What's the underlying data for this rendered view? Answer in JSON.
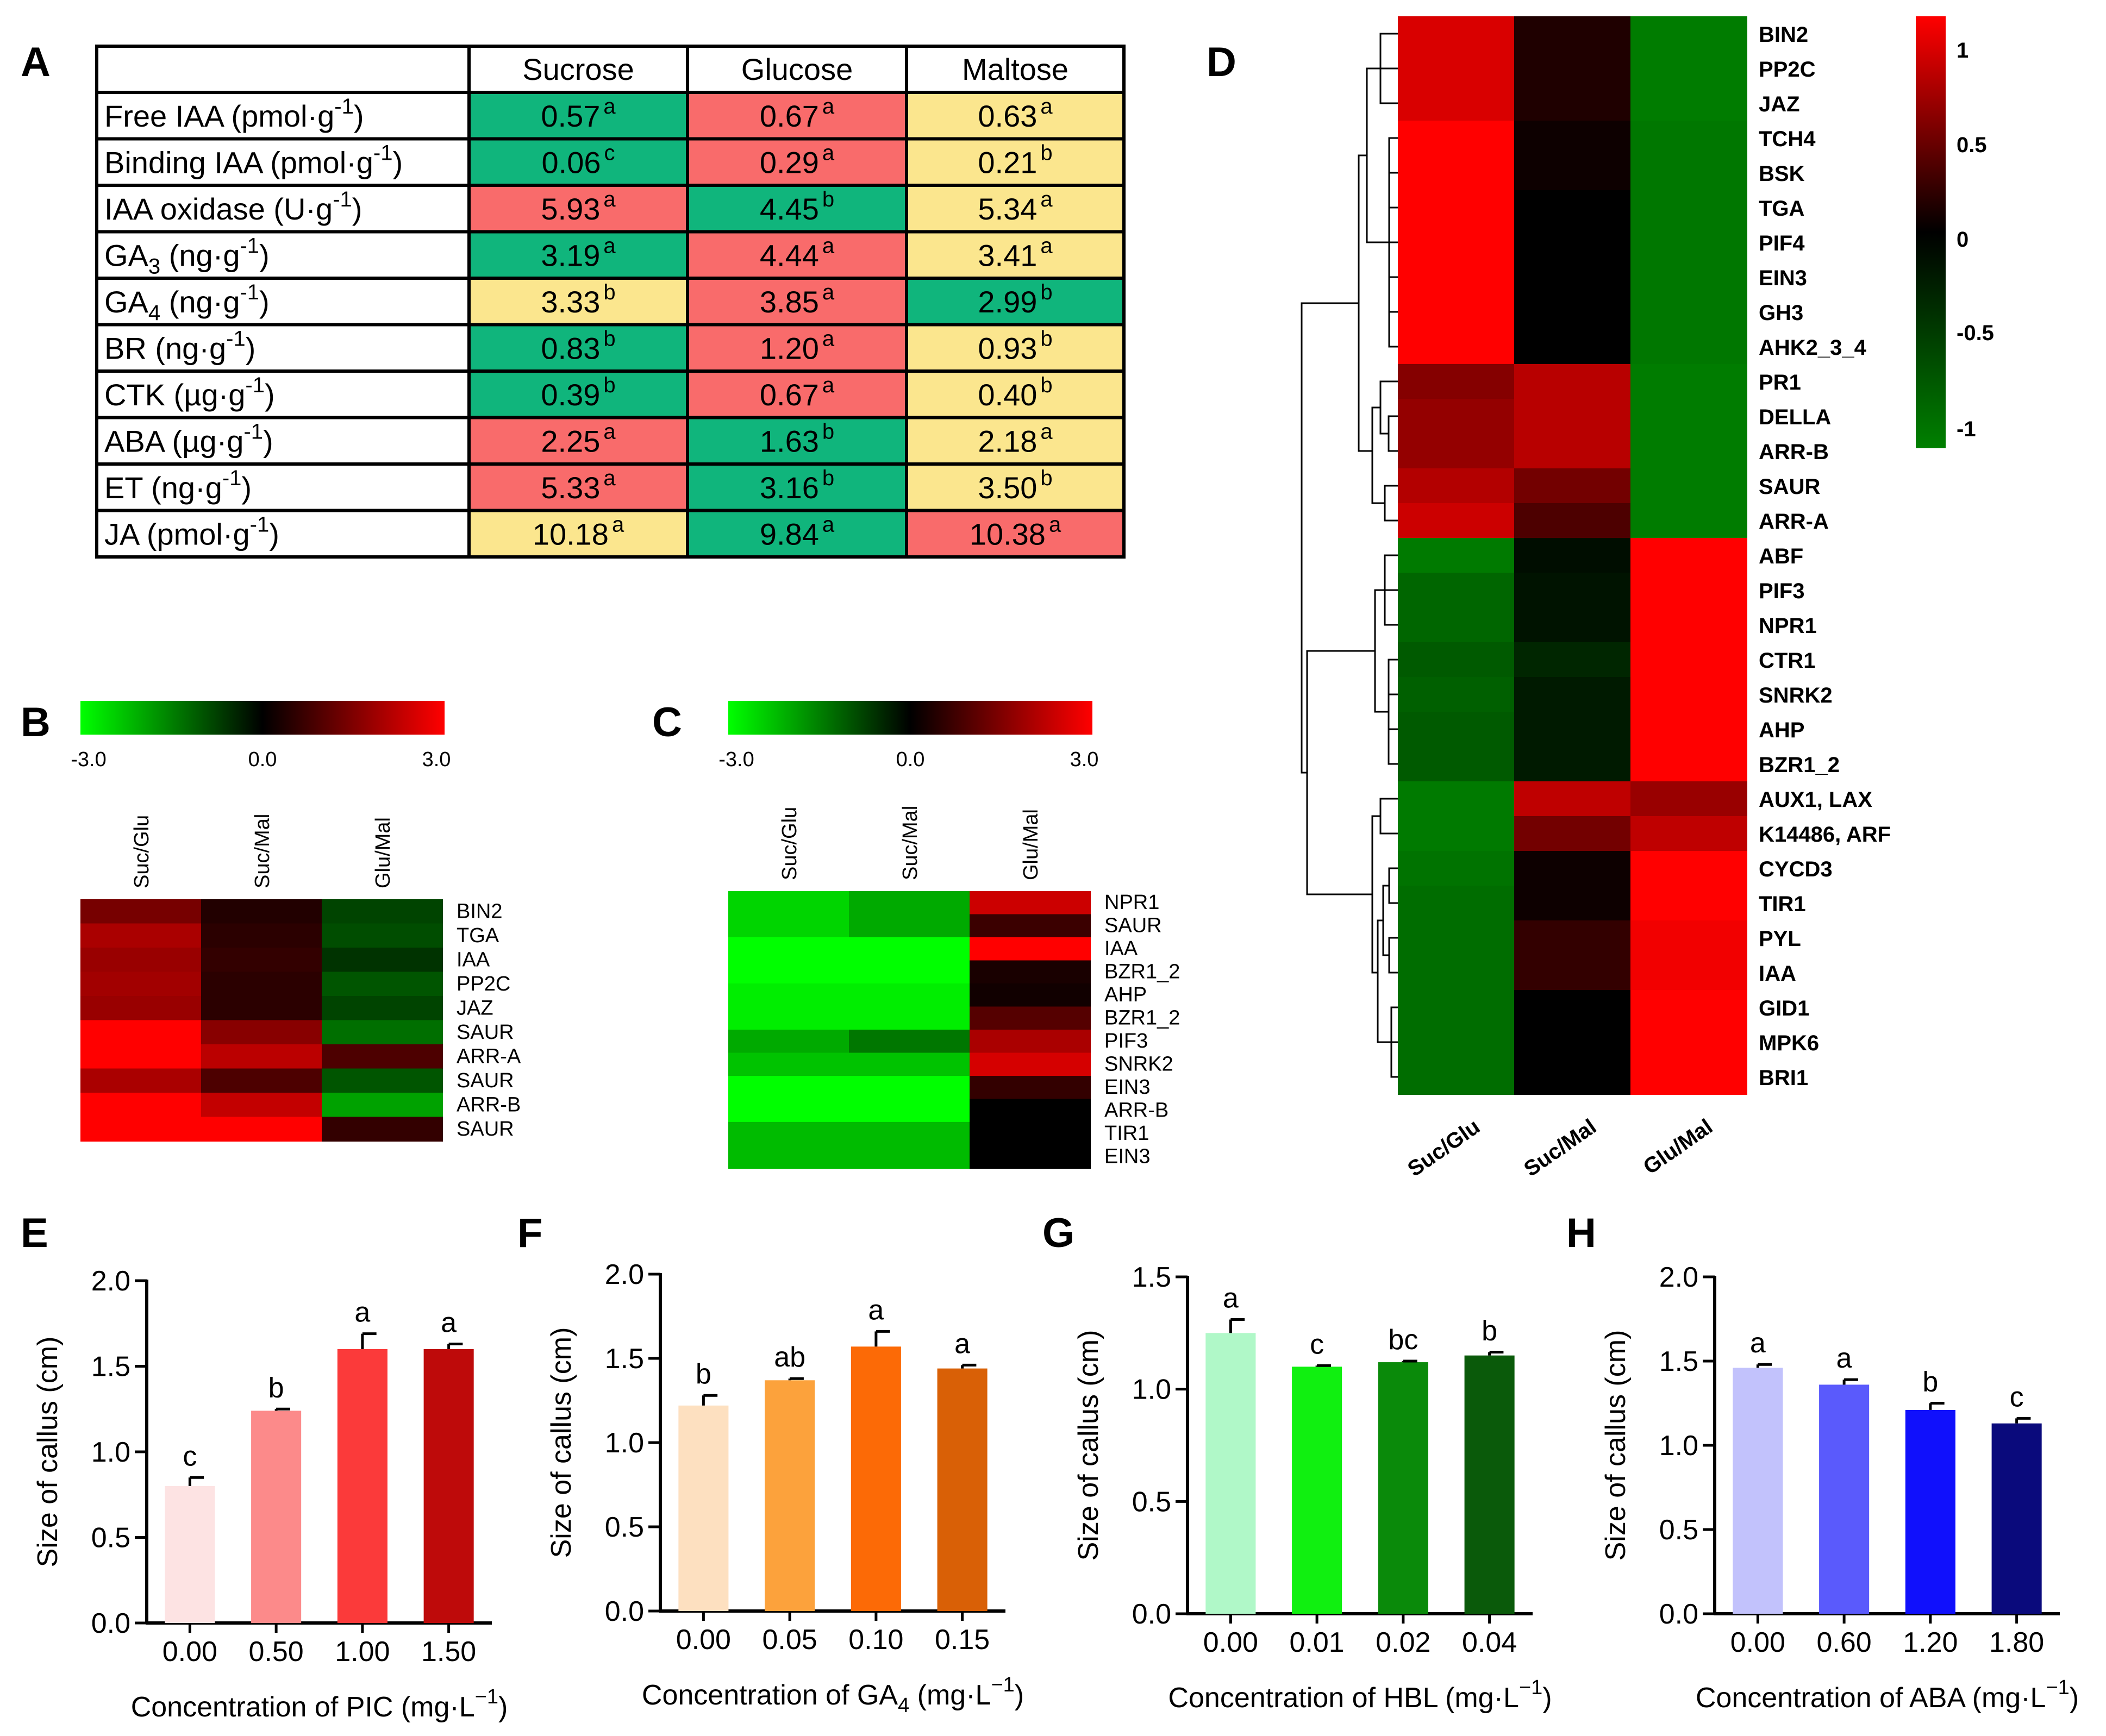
{
  "panels": {
    "A": "A",
    "B": "B",
    "C": "C",
    "D": "D",
    "E": "E",
    "F": "F",
    "G": "G",
    "H": "H"
  },
  "colors": {
    "table_red": "#f96b6b",
    "table_green": "#10b57c",
    "table_yellow": "#fbe68e",
    "bar_E": [
      "#fde3e3",
      "#fc8a8a",
      "#fb3a3a",
      "#be0a0a"
    ],
    "bar_F": [
      "#fde0c0",
      "#fca23c",
      "#fc6a06",
      "#d96006"
    ],
    "bar_G": [
      "#b0f8c8",
      "#10f010",
      "#0a8a0a",
      "#0a5a0a"
    ],
    "bar_H": [
      "#c2c2fc",
      "#5a5afc",
      "#1010fc",
      "#0a0a7c"
    ]
  },
  "chart_data": [
    {
      "panel": "A",
      "type": "table",
      "columns": [
        "Sucrose",
        "Glucose",
        "Maltose"
      ],
      "rows": [
        {
          "label": "Free IAA (pmol·g",
          "label_sup": "-1",
          "label_end": ")",
          "cells": [
            {
              "v": "0.57",
              "s": "a",
              "c": "green"
            },
            {
              "v": "0.67",
              "s": "a",
              "c": "red"
            },
            {
              "v": "0.63",
              "s": "a",
              "c": "yellow"
            }
          ]
        },
        {
          "label": "Binding IAA (pmol·g",
          "label_sup": "-1",
          "label_end": ")",
          "cells": [
            {
              "v": "0.06",
              "s": "c",
              "c": "green"
            },
            {
              "v": "0.29",
              "s": "a",
              "c": "red"
            },
            {
              "v": "0.21",
              "s": "b",
              "c": "yellow"
            }
          ]
        },
        {
          "label": "IAA oxidase (U·g",
          "label_sup": "-1",
          "label_end": ")",
          "cells": [
            {
              "v": "5.93",
              "s": "a",
              "c": "red"
            },
            {
              "v": "4.45",
              "s": "b",
              "c": "green"
            },
            {
              "v": "5.34",
              "s": "a",
              "c": "yellow"
            }
          ]
        },
        {
          "label": "GA",
          "label_sub": "3",
          "label_mid": " (ng·g",
          "label_sup": "-1",
          "label_end": ")",
          "cells": [
            {
              "v": "3.19",
              "s": "a",
              "c": "green"
            },
            {
              "v": "4.44",
              "s": "a",
              "c": "red"
            },
            {
              "v": "3.41",
              "s": "a",
              "c": "yellow"
            }
          ]
        },
        {
          "label": "GA",
          "label_sub": "4",
          "label_mid": " (ng·g",
          "label_sup": "-1",
          "label_end": ")",
          "cells": [
            {
              "v": "3.33",
              "s": "b",
              "c": "yellow"
            },
            {
              "v": "3.85",
              "s": "a",
              "c": "red"
            },
            {
              "v": "2.99",
              "s": "b",
              "c": "green"
            }
          ]
        },
        {
          "label": "BR (ng·g",
          "label_sup": "-1",
          "label_end": ")",
          "cells": [
            {
              "v": "0.83",
              "s": "b",
              "c": "green"
            },
            {
              "v": "1.20",
              "s": "a",
              "c": "red"
            },
            {
              "v": "0.93",
              "s": "b",
              "c": "yellow"
            }
          ]
        },
        {
          "label": "CTK (µg·g",
          "label_sup": "-1",
          "label_end": ")",
          "cells": [
            {
              "v": "0.39",
              "s": "b",
              "c": "green"
            },
            {
              "v": "0.67",
              "s": "a",
              "c": "red"
            },
            {
              "v": "0.40",
              "s": "b",
              "c": "yellow"
            }
          ]
        },
        {
          "label": "ABA (µg·g",
          "label_sup": "-1",
          "label_end": ")",
          "cells": [
            {
              "v": "2.25",
              "s": "a",
              "c": "red"
            },
            {
              "v": "1.63",
              "s": "b",
              "c": "green"
            },
            {
              "v": "2.18",
              "s": "a",
              "c": "yellow"
            }
          ]
        },
        {
          "label": "ET (ng·g",
          "label_sup": "-1",
          "label_end": ")",
          "cells": [
            {
              "v": "5.33",
              "s": "a",
              "c": "red"
            },
            {
              "v": "3.16",
              "s": "b",
              "c": "green"
            },
            {
              "v": "3.50",
              "s": "b",
              "c": "yellow"
            }
          ]
        },
        {
          "label": "JA (pmol·g",
          "label_sup": "-1",
          "label_end": ")",
          "cells": [
            {
              "v": "10.18",
              "s": "a",
              "c": "yellow"
            },
            {
              "v": "9.84",
              "s": "a",
              "c": "green"
            },
            {
              "v": "10.38",
              "s": "a",
              "c": "red"
            }
          ]
        }
      ]
    },
    {
      "panel": "B",
      "type": "heatmap",
      "colorbar": {
        "ticks": [
          "-3.0",
          "0.0",
          "3.0"
        ],
        "range": [
          -3,
          3
        ],
        "colors": [
          "#00ff00",
          "#000000",
          "#ff0000"
        ]
      },
      "columns": [
        "Suc/Glu",
        "Suc/Mal",
        "Glu/Mal"
      ],
      "rows": [
        "BIN2",
        "TGA",
        "IAA",
        "PP2C",
        "JAZ",
        "SAUR",
        "ARR-A",
        "SAUR",
        "ARR-B",
        "SAUR"
      ],
      "values": [
        [
          1.4,
          0.4,
          -0.8
        ],
        [
          2.0,
          0.5,
          -0.9
        ],
        [
          1.8,
          0.6,
          -0.6
        ],
        [
          1.9,
          0.5,
          -1.0
        ],
        [
          1.8,
          0.5,
          -0.8
        ],
        [
          3.0,
          1.6,
          -1.3
        ],
        [
          3.0,
          2.2,
          0.9
        ],
        [
          2.0,
          0.9,
          -1.0
        ],
        [
          3.0,
          2.3,
          -1.9
        ],
        [
          3.0,
          3.0,
          0.6
        ]
      ]
    },
    {
      "panel": "C",
      "type": "heatmap",
      "colorbar": {
        "ticks": [
          "-3.0",
          "0.0",
          "3.0"
        ],
        "range": [
          -3,
          3
        ],
        "colors": [
          "#00ff00",
          "#000000",
          "#ff0000"
        ]
      },
      "columns": [
        "Suc/Glu",
        "Suc/Mal",
        "Glu/Mal"
      ],
      "rows": [
        "NPR1",
        "SAUR",
        "IAA",
        "BZR1_2",
        "AHP",
        "BZR1_2",
        "PIF3",
        "SNRK2",
        "EIN3",
        "ARR-B",
        "TIR1",
        "EIN3"
      ],
      "values": [
        [
          -2.5,
          -2.0,
          2.4
        ],
        [
          -2.5,
          -2.0,
          0.7
        ],
        [
          -3.0,
          -3.0,
          3.0
        ],
        [
          -3.0,
          -3.0,
          0.3
        ],
        [
          -2.8,
          -2.8,
          0.2
        ],
        [
          -2.8,
          -2.8,
          1.0
        ],
        [
          -2.0,
          -1.4,
          2.0
        ],
        [
          -2.3,
          -2.3,
          2.5
        ],
        [
          -3.0,
          -3.0,
          0.6
        ],
        [
          -3.0,
          -3.0,
          0.0
        ],
        [
          -2.2,
          -2.2,
          0.0
        ],
        [
          -2.2,
          -2.2,
          0.0
        ]
      ]
    },
    {
      "panel": "D",
      "type": "heatmap",
      "colorbar": {
        "ticks": [
          "1",
          "0.5",
          "0",
          "-0.5",
          "-1"
        ],
        "range": [
          -1,
          1
        ],
        "colors": [
          "#008000",
          "#000000",
          "#ff0000"
        ]
      },
      "columns": [
        "Suc/Glu",
        "Suc/Mal",
        "Glu/Mal"
      ],
      "rows": [
        "BIN2",
        "PP2C",
        "JAZ",
        "TCH4",
        "BSK",
        "TGA",
        "PIF4",
        "EIN3",
        "GH3",
        "AHK2_3_4",
        "PR1",
        "DELLA",
        "ARR-B",
        "SAUR",
        "ARR-A",
        "ABF",
        "PIF3",
        "NPR1",
        "CTR1",
        "SNRK2",
        "AHP",
        "BZR1_2",
        "AUX1, LAX",
        "K14486, ARF",
        "CYCD3",
        "TIR1",
        "PYL",
        "IAA",
        "GID1",
        "MPK6",
        "BRI1"
      ],
      "values": [
        [
          0.85,
          0.12,
          -0.97
        ],
        [
          0.85,
          0.12,
          -0.97
        ],
        [
          0.85,
          0.12,
          -0.97
        ],
        [
          1.0,
          0.05,
          -0.93
        ],
        [
          1.0,
          0.05,
          -0.93
        ],
        [
          1.0,
          0.0,
          -0.93
        ],
        [
          1.0,
          0.0,
          -0.93
        ],
        [
          1.0,
          0.0,
          -0.93
        ],
        [
          1.0,
          0.0,
          -0.93
        ],
        [
          1.0,
          0.0,
          -0.93
        ],
        [
          0.52,
          0.72,
          -0.97
        ],
        [
          0.58,
          0.72,
          -0.97
        ],
        [
          0.58,
          0.72,
          -0.97
        ],
        [
          0.7,
          0.45,
          -0.97
        ],
        [
          0.8,
          0.3,
          -0.97
        ],
        [
          -0.95,
          -0.1,
          1.0
        ],
        [
          -0.8,
          -0.15,
          1.0
        ],
        [
          -0.8,
          -0.15,
          1.0
        ],
        [
          -0.7,
          -0.3,
          1.0
        ],
        [
          -0.75,
          -0.2,
          1.0
        ],
        [
          -0.7,
          -0.2,
          1.0
        ],
        [
          -0.7,
          -0.2,
          1.0
        ],
        [
          -0.95,
          0.75,
          0.6
        ],
        [
          -0.95,
          0.45,
          0.75
        ],
        [
          -0.9,
          0.05,
          1.0
        ],
        [
          -0.85,
          0.05,
          1.0
        ],
        [
          -0.85,
          0.2,
          0.95
        ],
        [
          -0.85,
          0.2,
          0.95
        ],
        [
          -0.85,
          0.0,
          1.0
        ],
        [
          -0.85,
          0.0,
          1.0
        ],
        [
          -0.85,
          0.0,
          1.0
        ]
      ]
    },
    {
      "panel": "E",
      "type": "bar",
      "categories": [
        "0.00",
        "0.50",
        "1.00",
        "1.50"
      ],
      "values": [
        0.8,
        1.24,
        1.6,
        1.6
      ],
      "errors": [
        0.05,
        0.01,
        0.09,
        0.03
      ],
      "letters": [
        "c",
        "b",
        "a",
        "a"
      ],
      "ylabel": "Size of callus (cm)",
      "xlabel": "Concentration of PIC (mg·L",
      "xlabel_sup": "−1",
      "xlabel_end": ")",
      "ylim": [
        0,
        2.0
      ],
      "yticks": [
        "0.0",
        "0.5",
        "1.0",
        "1.5",
        "2.0"
      ]
    },
    {
      "panel": "F",
      "type": "bar",
      "categories": [
        "0.00",
        "0.05",
        "0.10",
        "0.15"
      ],
      "values": [
        1.22,
        1.37,
        1.57,
        1.44
      ],
      "errors": [
        0.06,
        0.01,
        0.09,
        0.02
      ],
      "letters": [
        "b",
        "ab",
        "a",
        "a"
      ],
      "ylabel": "Size of callus (cm)",
      "xlabel": "Concentration of GA",
      "xlabel_sub": "4",
      "xlabel_mid": " (mg·L",
      "xlabel_sup": "−1",
      "xlabel_end": ")",
      "ylim": [
        0,
        2.0
      ],
      "yticks": [
        "0.0",
        "0.5",
        "1.0",
        "1.5",
        "2.0"
      ]
    },
    {
      "panel": "G",
      "type": "bar",
      "categories": [
        "0.00",
        "0.01",
        "0.02",
        "0.04"
      ],
      "values": [
        1.25,
        1.1,
        1.12,
        1.15
      ],
      "errors": [
        0.06,
        0.005,
        0.005,
        0.015
      ],
      "letters": [
        "a",
        "c",
        "bc",
        "b"
      ],
      "ylabel": "Size of callus (cm)",
      "xlabel": "Concentration of HBL (mg·L",
      "xlabel_sup": "−1",
      "xlabel_end": ")",
      "ylim": [
        0,
        1.5
      ],
      "yticks": [
        "0.0",
        "0.5",
        "1.0",
        "1.5"
      ]
    },
    {
      "panel": "H",
      "type": "bar",
      "categories": [
        "0.00",
        "0.60",
        "1.20",
        "1.80"
      ],
      "values": [
        1.46,
        1.36,
        1.21,
        1.13
      ],
      "errors": [
        0.02,
        0.03,
        0.04,
        0.03
      ],
      "letters": [
        "a",
        "a",
        "b",
        "c"
      ],
      "ylabel": "Size of callus (cm)",
      "xlabel": "Concentration of ABA (mg·L",
      "xlabel_sup": "−1",
      "xlabel_end": ")",
      "ylim": [
        0,
        2.0
      ],
      "yticks": [
        "0.0",
        "0.5",
        "1.0",
        "1.5",
        "2.0"
      ]
    }
  ]
}
